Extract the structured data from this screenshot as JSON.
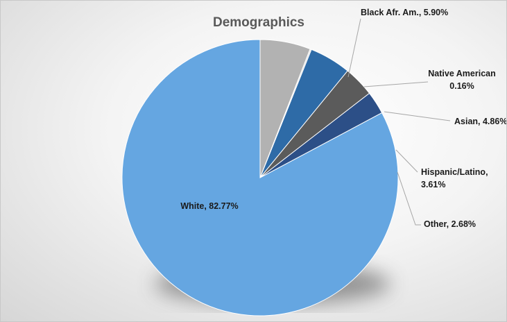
{
  "chart_data": {
    "type": "pie",
    "title": "Demographics",
    "start_angle_deg": 90,
    "direction": "counterclockwise",
    "legend": "none",
    "slices": [
      {
        "name": "White",
        "value": 82.77,
        "color": "#65a6e1",
        "label_lines": [
          "White, 82.77%"
        ]
      },
      {
        "name": "Other",
        "value": 2.68,
        "color": "#2c4f87",
        "label_lines": [
          "Other, 2.68%"
        ]
      },
      {
        "name": "Hispanic/Latino",
        "value": 3.61,
        "color": "#5b5b5b",
        "label_lines": [
          "Hispanic/Latino,",
          "3.61%"
        ]
      },
      {
        "name": "Asian",
        "value": 4.86,
        "color": "#2e6ba7",
        "label_lines": [
          "Asian, 4.86%"
        ]
      },
      {
        "name": "Native American",
        "value": 0.16,
        "color": "#dcdcdc",
        "label_lines": [
          "Native American",
          "0.16%"
        ]
      },
      {
        "name": "Black Afr. Am.",
        "value": 5.9,
        "color": "#b2b2b2",
        "label_lines": [
          "Black Afr. Am., 5.90%"
        ]
      }
    ]
  }
}
